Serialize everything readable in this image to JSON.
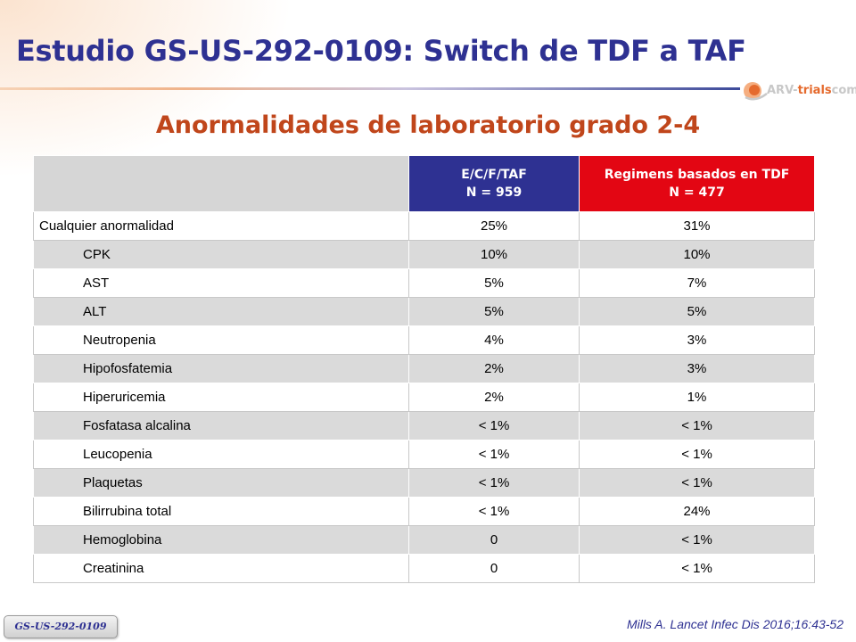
{
  "header": {
    "title": "Estudio GS-US-292-0109: Switch de TDF a TAF",
    "subtitle": "Anormalidades de laboratorio grado 2-4"
  },
  "logo": {
    "text_a": "ARV-",
    "text_b": "trials",
    "text_c": "com"
  },
  "table": {
    "columns": [
      {
        "line1": "E/C/F/TAF",
        "line2": "N = 959",
        "color": "#2e3192"
      },
      {
        "line1": "Regimens basados en TDF",
        "line2": "N = 477",
        "color": "#e30613"
      }
    ],
    "rows": [
      {
        "label": "Cualquier anormalidad",
        "level": 0,
        "taf": "25%",
        "tdf": "31%"
      },
      {
        "label": "CPK",
        "level": 1,
        "taf": "10%",
        "tdf": "10%"
      },
      {
        "label": "AST",
        "level": 1,
        "taf": "5%",
        "tdf": "7%"
      },
      {
        "label": "ALT",
        "level": 1,
        "taf": "5%",
        "tdf": "5%"
      },
      {
        "label": "Neutropenia",
        "level": 1,
        "taf": "4%",
        "tdf": "3%"
      },
      {
        "label": "Hipofosfatemia",
        "level": 1,
        "taf": "2%",
        "tdf": "3%"
      },
      {
        "label": "Hiperuricemia",
        "level": 1,
        "taf": "2%",
        "tdf": "1%"
      },
      {
        "label": "Fosfatasa alcalina",
        "level": 1,
        "taf": "< 1%",
        "tdf": "< 1%"
      },
      {
        "label": "Leucopenia",
        "level": 1,
        "taf": "< 1%",
        "tdf": "< 1%"
      },
      {
        "label": "Plaquetas",
        "level": 1,
        "taf": "< 1%",
        "tdf": "< 1%"
      },
      {
        "label": "Bilirrubina total",
        "level": 1,
        "taf": "< 1%",
        "tdf": "24%"
      },
      {
        "label": "Hemoglobina",
        "level": 1,
        "taf": "0",
        "tdf": "< 1%"
      },
      {
        "label": "Creatinina",
        "level": 1,
        "taf": "0",
        "tdf": "< 1%"
      }
    ]
  },
  "footer": {
    "tag": "GS-US-292-0109",
    "reference": "Mills A. Lancet Infec Dis 2016;16:43-52"
  },
  "colors": {
    "title": "#2e3192",
    "subtitle": "#c0461b",
    "header_taf": "#2e3192",
    "header_tdf": "#e30613",
    "row_shade": "#dadada"
  }
}
